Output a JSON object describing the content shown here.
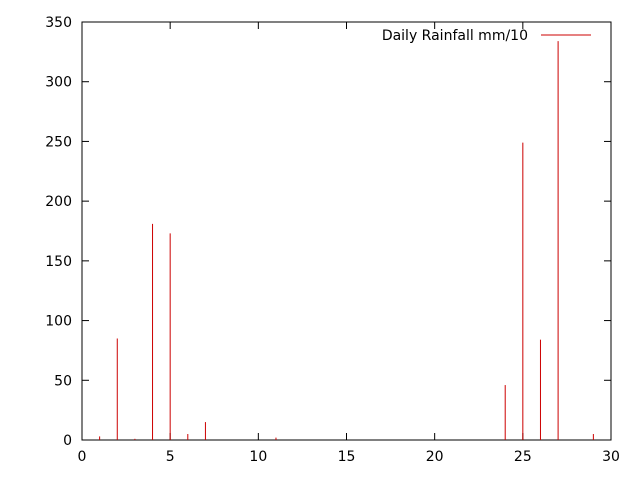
{
  "chart_data": {
    "type": "bar",
    "title": "",
    "xlabel": "",
    "ylabel": "",
    "xlim": [
      0,
      30
    ],
    "ylim": [
      0,
      350
    ],
    "xticks": [
      0,
      5,
      10,
      15,
      20,
      25,
      30
    ],
    "yticks": [
      0,
      50,
      100,
      150,
      200,
      250,
      300,
      350
    ],
    "xtick_labels": [
      "0",
      "5",
      "10",
      "15",
      "20",
      "25",
      "30"
    ],
    "ytick_labels": [
      "0",
      "50",
      "100",
      "150",
      "200",
      "250",
      "300",
      "350"
    ],
    "grid": false,
    "legend_position": "top-right",
    "series": [
      {
        "name": "Daily Rainfall mm/10",
        "color": "#cc0000",
        "style": "impulses",
        "x": [
          1,
          2,
          3,
          4,
          5,
          6,
          7,
          11,
          24,
          25,
          26,
          27,
          29
        ],
        "values": [
          3,
          85,
          1,
          181,
          173,
          5,
          15,
          2,
          46,
          249,
          84,
          334,
          5
        ]
      }
    ]
  }
}
